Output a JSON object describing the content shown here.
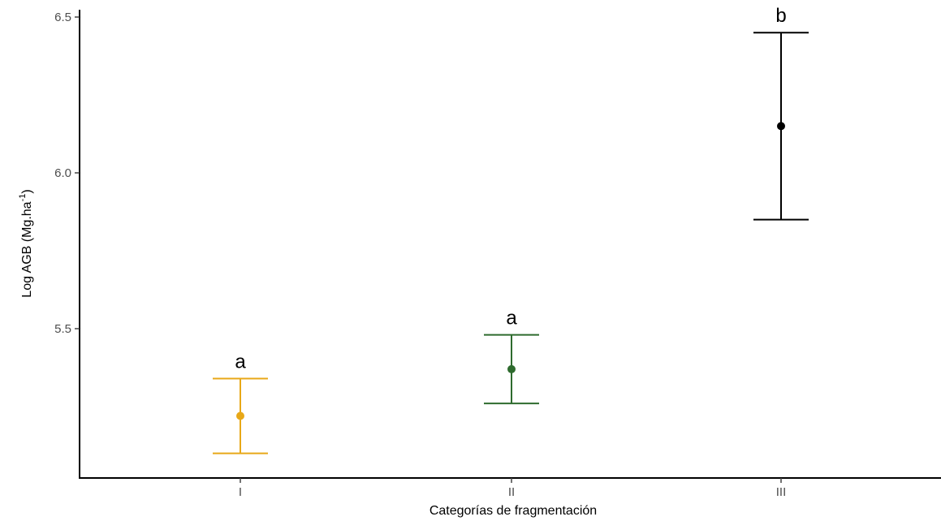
{
  "chart_data": {
    "type": "scatter",
    "title": "",
    "xlabel": "Categorías de fragmentación",
    "ylabel": {
      "main": "Log AGB (Mg.ha",
      "superscript": "-1",
      "close": ")"
    },
    "categories": [
      "I",
      "II",
      "III"
    ],
    "y_ticks": [
      "5.5",
      "6.0",
      "6.5"
    ],
    "ylim": [
      5.08,
      6.53
    ],
    "grid": false,
    "legend": "none",
    "points": [
      {
        "category": "I",
        "mean": 5.22,
        "lower": 5.1,
        "upper": 5.34,
        "letter": "a",
        "color": "#E8A818"
      },
      {
        "category": "II",
        "mean": 5.37,
        "lower": 5.26,
        "upper": 5.48,
        "letter": "a",
        "color": "#2E6B2E"
      },
      {
        "category": "III",
        "mean": 6.15,
        "lower": 5.85,
        "upper": 6.45,
        "letter": "b",
        "color": "#000000"
      }
    ]
  }
}
